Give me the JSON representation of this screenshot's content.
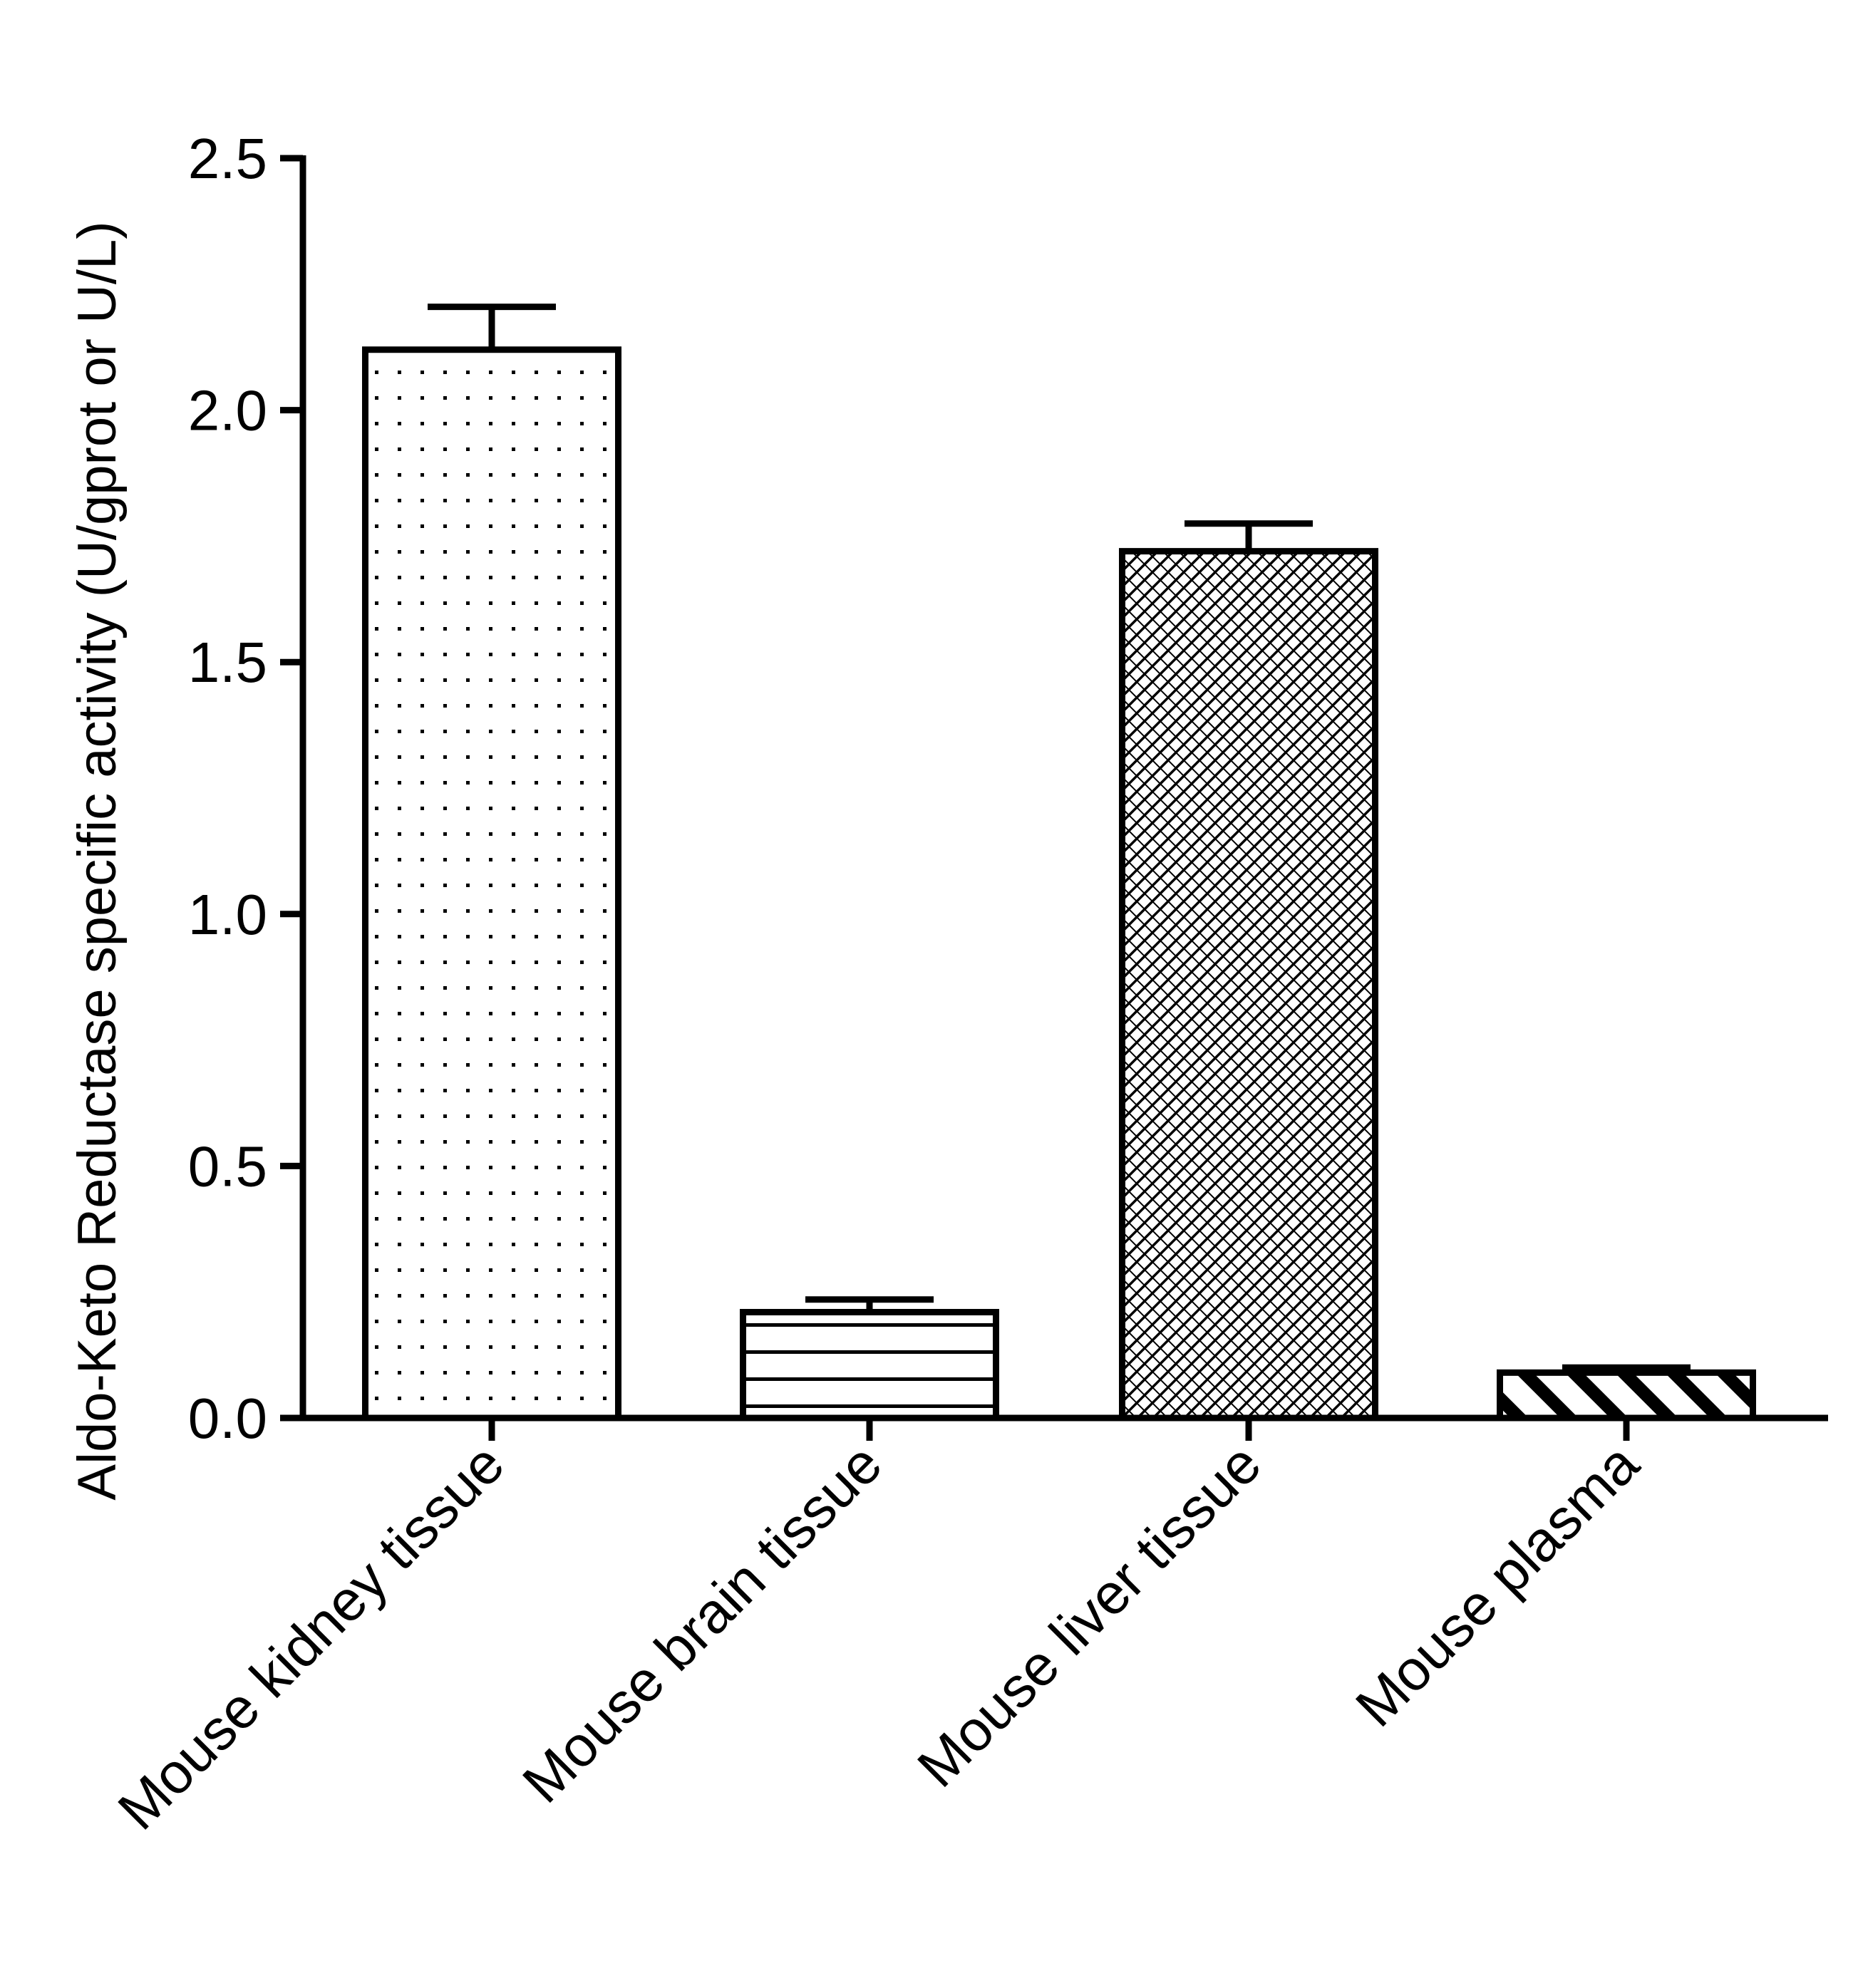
{
  "chart_data": {
    "type": "bar",
    "title": "",
    "xlabel": "",
    "ylabel": "Aldo-Keto Reductase specific activity (U/gprot or U/L)",
    "ylim": [
      0,
      2.5
    ],
    "yticks": [
      0.0,
      0.5,
      1.0,
      1.5,
      2.0,
      2.5
    ],
    "ytick_labels": [
      "0.0",
      "0.5",
      "1.0",
      "1.5",
      "2.0",
      "2.5"
    ],
    "grid": false,
    "categories": [
      "Mouse kidney tissue",
      "Mouse brain tissue",
      "Mouse liver tissue",
      "Mouse plasma"
    ],
    "values": [
      2.12,
      0.21,
      1.72,
      0.09
    ],
    "errors": [
      0.085,
      0.025,
      0.055,
      0.01
    ],
    "patterns": [
      "dots",
      "horizontal-lines",
      "crosshatch",
      "wide-diagonal"
    ],
    "bar_fill": "#ffffff",
    "line_color": "#000000"
  }
}
